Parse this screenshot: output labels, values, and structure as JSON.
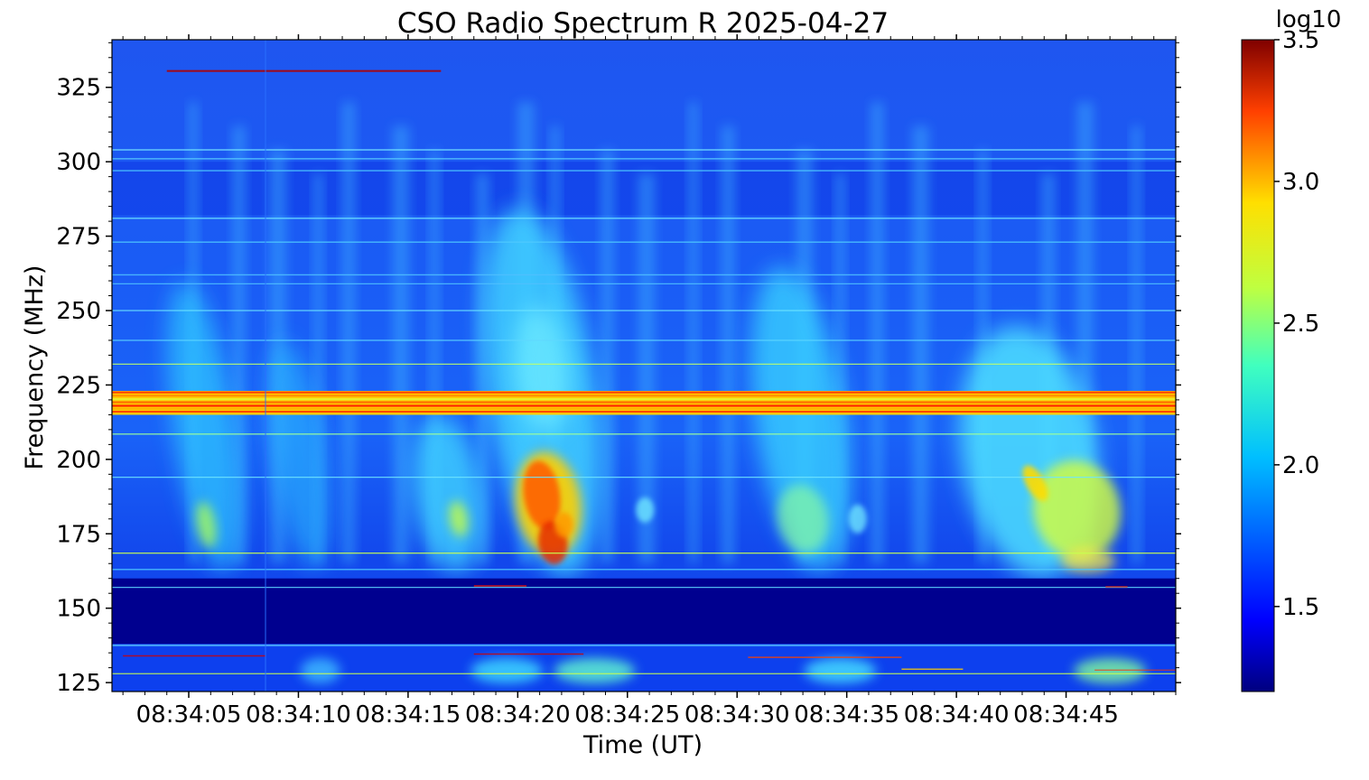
{
  "chart_data": {
    "type": "heatmap",
    "title": "CSO Radio Spectrum R 2025-04-27",
    "xlabel": "Time (UT)",
    "ylabel": "Frequency (MHz)",
    "x_ticks": [
      "08:34:05",
      "08:34:10",
      "08:34:15",
      "08:34:20",
      "08:34:25",
      "08:34:30",
      "08:34:35",
      "08:34:40",
      "08:34:45"
    ],
    "x_range": [
      "08:34:01.5",
      "08:34:50.0"
    ],
    "y_ticks": [
      125,
      150,
      175,
      200,
      225,
      250,
      275,
      300,
      325
    ],
    "ylim": [
      122,
      341
    ],
    "colorbar": {
      "label": "log10",
      "ticks": [
        "1.5",
        "2.0",
        "2.5",
        "3.0",
        "3.5"
      ],
      "range": [
        1.2,
        3.5
      ],
      "colormap": "jet"
    },
    "features": {
      "persistent_band_mhz": [
        215,
        223
      ],
      "low_emission_gap_mhz": [
        138,
        160
      ],
      "burst_peak_times": [
        "08:34:05",
        "08:34:17",
        "08:34:21",
        "08:34:33",
        "08:34:45"
      ]
    }
  }
}
